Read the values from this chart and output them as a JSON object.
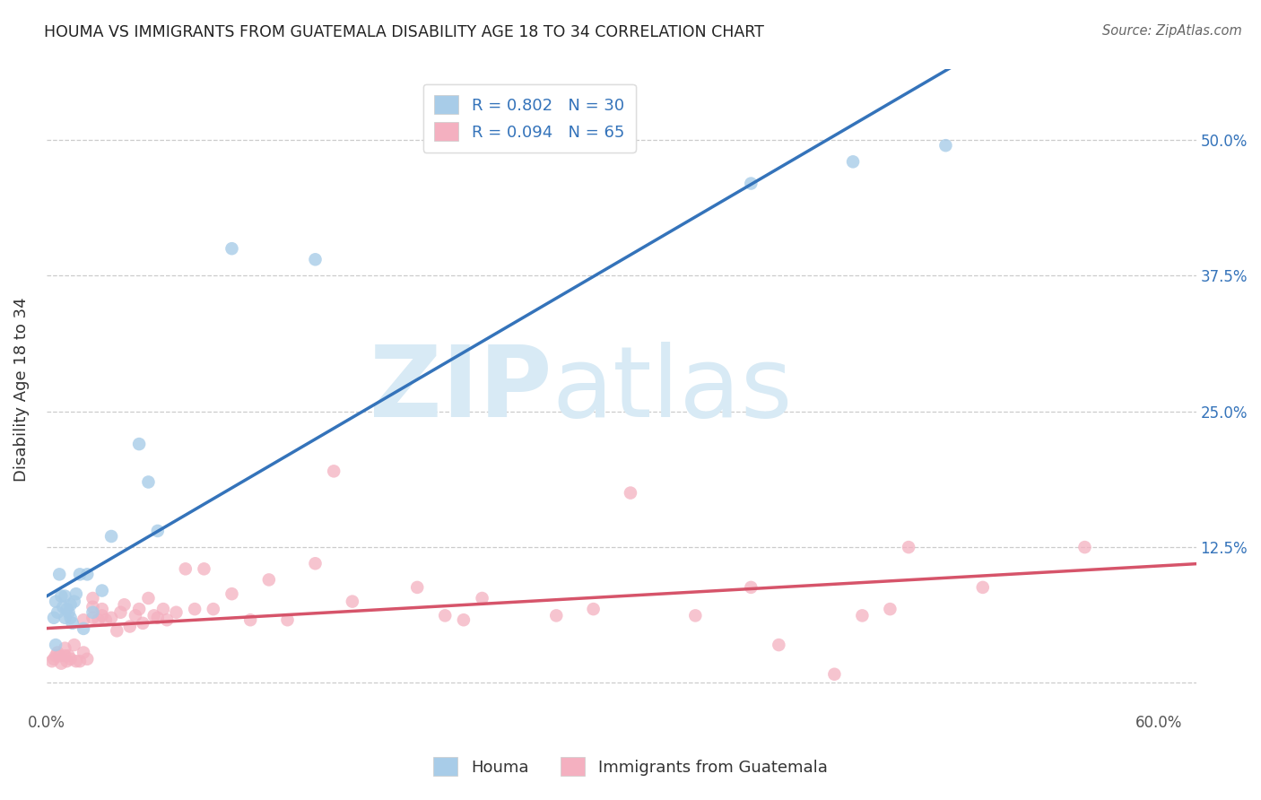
{
  "title": "HOUMA VS IMMIGRANTS FROM GUATEMALA DISABILITY AGE 18 TO 34 CORRELATION CHART",
  "source": "Source: ZipAtlas.com",
  "ylabel": "Disability Age 18 to 34",
  "xlim": [
    0.0,
    0.62
  ],
  "ylim": [
    -0.025,
    0.565
  ],
  "xticks": [
    0.0,
    0.1,
    0.2,
    0.3,
    0.4,
    0.5,
    0.6
  ],
  "xticklabels": [
    "0.0%",
    "",
    "",
    "",
    "",
    "",
    "60.0%"
  ],
  "yticks": [
    0.0,
    0.125,
    0.25,
    0.375,
    0.5
  ],
  "yticklabels": [
    "",
    "12.5%",
    "25.0%",
    "37.5%",
    "50.0%"
  ],
  "legend_label1": "R = 0.802   N = 30",
  "legend_label2": "R = 0.094   N = 65",
  "legend_bottom_label1": "Houma",
  "legend_bottom_label2": "Immigrants from Guatemala",
  "blue_color": "#a8cce8",
  "blue_line_color": "#3473ba",
  "pink_color": "#f4b0c0",
  "pink_line_color": "#d6546a",
  "legend_text_color": "#3473ba",
  "watermark_zip": "ZIP",
  "watermark_atlas": "atlas",
  "watermark_color": "#d8eaf5",
  "houma_x": [
    0.004,
    0.005,
    0.005,
    0.006,
    0.007,
    0.008,
    0.009,
    0.01,
    0.01,
    0.011,
    0.012,
    0.013,
    0.013,
    0.014,
    0.015,
    0.016,
    0.018,
    0.02,
    0.022,
    0.025,
    0.03,
    0.035,
    0.05,
    0.055,
    0.06,
    0.1,
    0.145,
    0.38,
    0.435,
    0.485
  ],
  "houma_y": [
    0.06,
    0.075,
    0.035,
    0.065,
    0.1,
    0.08,
    0.07,
    0.06,
    0.08,
    0.068,
    0.065,
    0.072,
    0.06,
    0.055,
    0.075,
    0.082,
    0.1,
    0.05,
    0.1,
    0.065,
    0.085,
    0.135,
    0.22,
    0.185,
    0.14,
    0.4,
    0.39,
    0.46,
    0.48,
    0.495
  ],
  "guatemala_x": [
    0.003,
    0.004,
    0.005,
    0.006,
    0.007,
    0.008,
    0.01,
    0.01,
    0.011,
    0.012,
    0.013,
    0.015,
    0.016,
    0.018,
    0.02,
    0.02,
    0.022,
    0.025,
    0.025,
    0.025,
    0.028,
    0.03,
    0.03,
    0.032,
    0.035,
    0.038,
    0.04,
    0.042,
    0.045,
    0.048,
    0.05,
    0.052,
    0.055,
    0.058,
    0.06,
    0.063,
    0.065,
    0.07,
    0.075,
    0.08,
    0.085,
    0.09,
    0.1,
    0.11,
    0.12,
    0.13,
    0.145,
    0.155,
    0.165,
    0.2,
    0.215,
    0.225,
    0.235,
    0.275,
    0.295,
    0.315,
    0.35,
    0.38,
    0.395,
    0.425,
    0.44,
    0.455,
    0.465,
    0.505,
    0.56
  ],
  "guatemala_y": [
    0.02,
    0.022,
    0.025,
    0.028,
    0.025,
    0.018,
    0.025,
    0.032,
    0.02,
    0.025,
    0.022,
    0.035,
    0.02,
    0.02,
    0.028,
    0.058,
    0.022,
    0.06,
    0.07,
    0.078,
    0.058,
    0.062,
    0.068,
    0.058,
    0.06,
    0.048,
    0.065,
    0.072,
    0.052,
    0.062,
    0.068,
    0.055,
    0.078,
    0.062,
    0.06,
    0.068,
    0.058,
    0.065,
    0.105,
    0.068,
    0.105,
    0.068,
    0.082,
    0.058,
    0.095,
    0.058,
    0.11,
    0.195,
    0.075,
    0.088,
    0.062,
    0.058,
    0.078,
    0.062,
    0.068,
    0.175,
    0.062,
    0.088,
    0.035,
    0.008,
    0.062,
    0.068,
    0.125,
    0.088,
    0.125
  ]
}
